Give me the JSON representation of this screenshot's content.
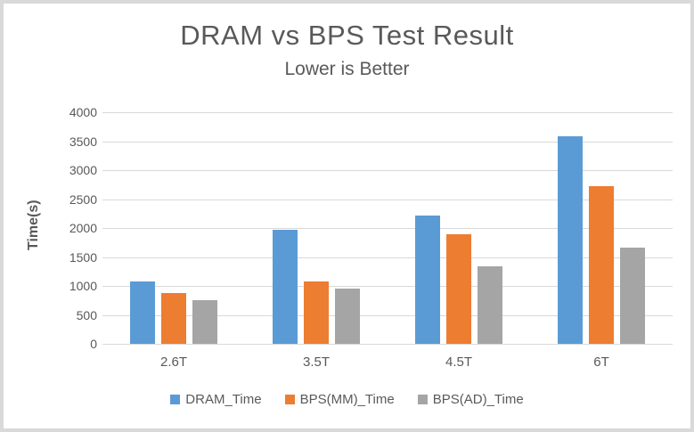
{
  "window": {
    "border_color": "#d9d9d9",
    "background": "#ffffff"
  },
  "chart_data": {
    "type": "bar",
    "title": "DRAM vs BPS Test Result",
    "subtitle": "Lower is Better",
    "xlabel": "",
    "ylabel": "Time(s)",
    "categories": [
      "2.6T",
      "3.5T",
      "4.5T",
      "6T"
    ],
    "series": [
      {
        "name": "DRAM_Time",
        "color": "#5B9BD5",
        "values": [
          1080,
          1970,
          2220,
          3590
        ]
      },
      {
        "name": "BPS(MM)_Time",
        "color": "#ED7D31",
        "values": [
          880,
          1080,
          1900,
          2730
        ]
      },
      {
        "name": "BPS(AD)_Time",
        "color": "#A5A5A5",
        "values": [
          760,
          950,
          1340,
          1660
        ]
      }
    ],
    "ylim": [
      0,
      4000
    ],
    "ytick_step": 500,
    "grid": true,
    "gridline_color": "#d9d9d9",
    "text_color": "#595959",
    "legend_position": "bottom"
  }
}
